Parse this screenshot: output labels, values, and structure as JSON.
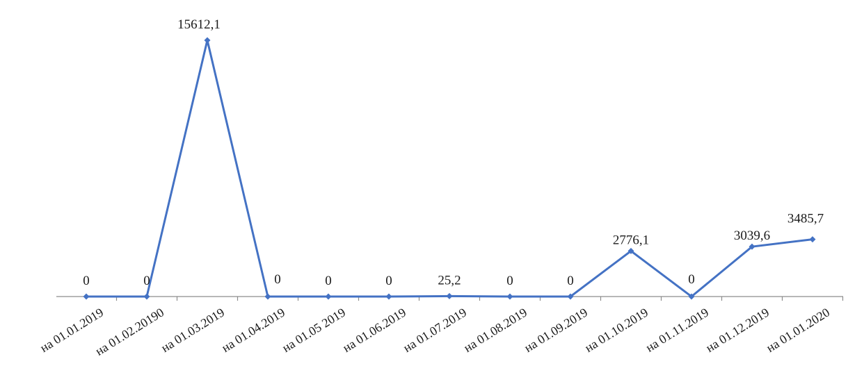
{
  "chart_data": {
    "type": "line",
    "title": "",
    "xlabel": "",
    "ylabel": "",
    "categories": [
      "на 01.01.2019",
      "на 01.02.20190",
      "на 01.03.2019",
      "на 01.04.2019",
      "на 01.05 2019",
      "на 01.06.2019",
      "на 01.07.2019",
      "на 01.08.2019",
      "на 01.09.2019",
      "на 01.10.2019",
      "на 01.11.2019",
      "на 01.12.2019",
      "на 01.01.2020"
    ],
    "values": [
      0,
      0,
      15612.1,
      0,
      0,
      0,
      25.2,
      0,
      0,
      2776.1,
      0,
      3039.6,
      3485.7
    ],
    "data_labels": [
      "0",
      "0",
      "15612,1",
      "0",
      "0",
      "0",
      "25,2",
      "0",
      "0",
      "2776,1",
      "0",
      "3039,6",
      "3485,7"
    ],
    "ylim": [
      0,
      15612.1
    ],
    "grid": false,
    "legend": "none",
    "line_color": "#4472c4"
  }
}
